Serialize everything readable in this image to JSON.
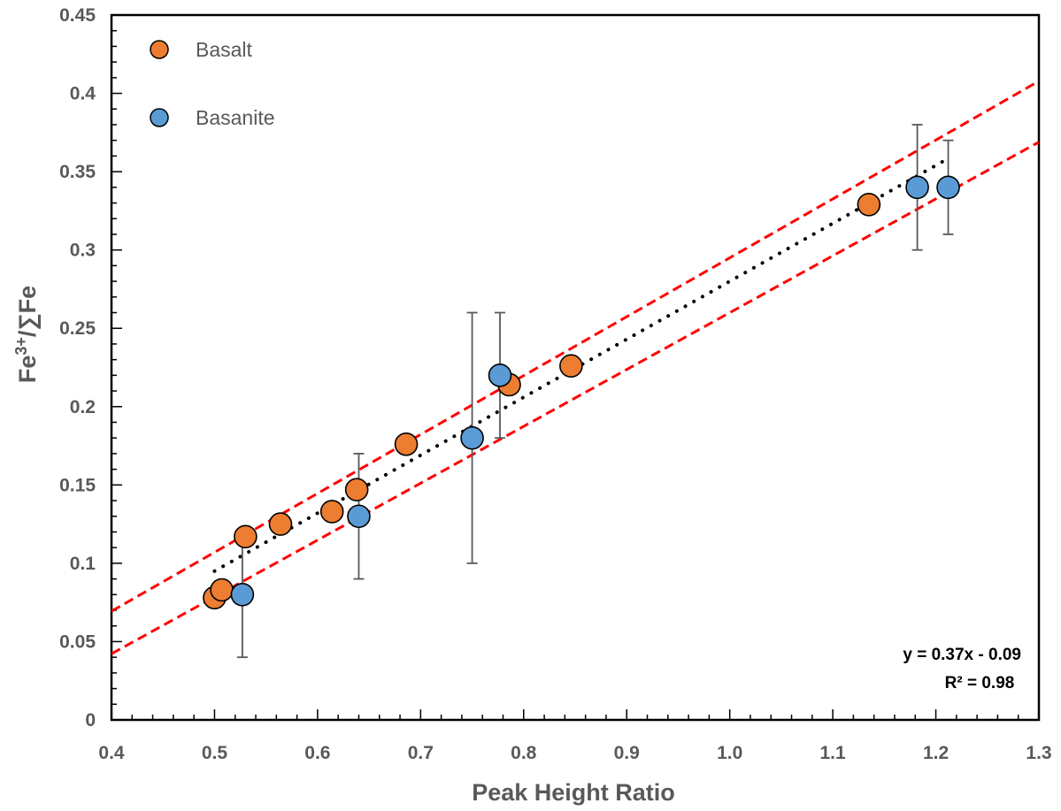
{
  "chart_data": {
    "type": "scatter",
    "xlabel": "Peak Height Ratio",
    "ylabel_main": "Fe",
    "ylabel_sup": "3+",
    "ylabel_rest": "/∑Fe",
    "xlim": [
      0.4,
      1.3
    ],
    "ylim": [
      0,
      0.45
    ],
    "x_ticks": [
      "0.4",
      "0.5",
      "0.6",
      "0.7",
      "0.8",
      "0.9",
      "1.0",
      "1.1",
      "1.2",
      "1.3"
    ],
    "y_ticks": [
      "0",
      "0.05",
      "0.1",
      "0.15",
      "0.2",
      "0.25",
      "0.3",
      "0.35",
      "0.4",
      "0.45"
    ],
    "grid": false,
    "legend_position": "top-left",
    "series": [
      {
        "name": "Basalt",
        "color": "#ED7D31",
        "points": [
          {
            "x": 0.5,
            "y": 0.078
          },
          {
            "x": 0.507,
            "y": 0.083
          },
          {
            "x": 0.53,
            "y": 0.117
          },
          {
            "x": 0.564,
            "y": 0.125
          },
          {
            "x": 0.614,
            "y": 0.133
          },
          {
            "x": 0.638,
            "y": 0.147
          },
          {
            "x": 0.686,
            "y": 0.176
          },
          {
            "x": 0.786,
            "y": 0.214
          },
          {
            "x": 0.846,
            "y": 0.226
          },
          {
            "x": 1.135,
            "y": 0.329
          }
        ]
      },
      {
        "name": "Basanite",
        "color": "#5B9BD5",
        "points": [
          {
            "x": 0.527,
            "y": 0.08,
            "err_low": 0.04,
            "err_high": 0.12
          },
          {
            "x": 0.64,
            "y": 0.13,
            "err_low": 0.09,
            "err_high": 0.17
          },
          {
            "x": 0.75,
            "y": 0.18,
            "err_low": 0.1,
            "err_high": 0.26
          },
          {
            "x": 0.777,
            "y": 0.22,
            "err_low": 0.18,
            "err_high": 0.26
          },
          {
            "x": 1.182,
            "y": 0.34,
            "err_low": 0.3,
            "err_high": 0.38
          },
          {
            "x": 1.212,
            "y": 0.34,
            "err_low": 0.31,
            "err_high": 0.37
          }
        ]
      }
    ],
    "trendline": {
      "slope": 0.37,
      "intercept": -0.09,
      "x_range": [
        0.5,
        1.212
      ],
      "style": "dotted",
      "color": "#000000"
    },
    "bounds": [
      {
        "slope": 0.376,
        "intercept": -0.081,
        "x_range": [
          0.4,
          1.3
        ],
        "style": "dashed",
        "color": "#FF0000"
      },
      {
        "slope": 0.363,
        "intercept": -0.103,
        "x_range": [
          0.4,
          1.3
        ],
        "style": "dashed",
        "color": "#FF0000"
      }
    ],
    "annotations": [
      "y = 0.37x - 0.09",
      "R² = 0.98"
    ]
  }
}
